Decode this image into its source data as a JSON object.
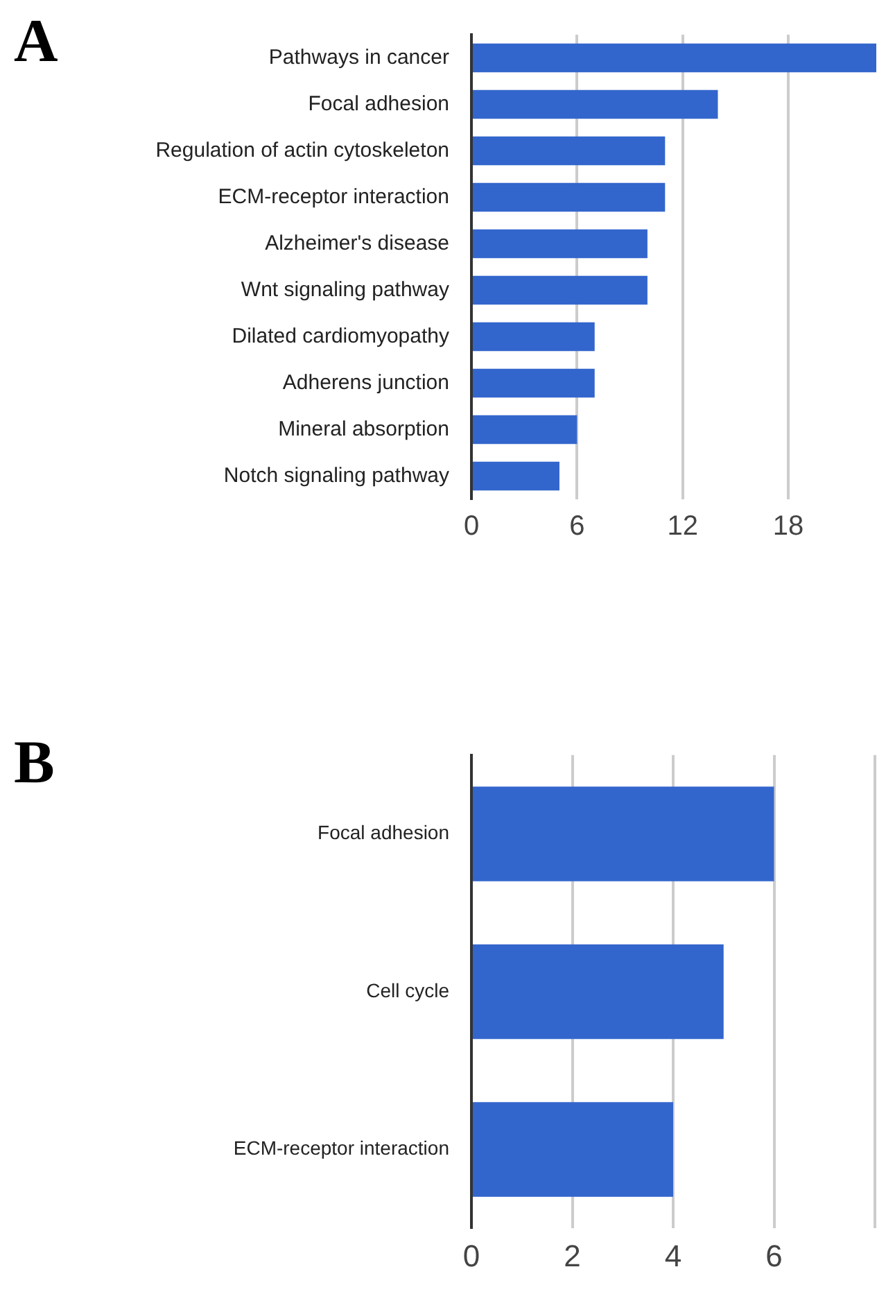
{
  "chart_data": [
    {
      "type": "bar",
      "title": "A",
      "orientation": "horizontal",
      "categories": [
        "Pathways in cancer",
        "Focal adhesion",
        "Regulation of actin cytoskeleton",
        "ECM-receptor interaction",
        "Alzheimer's disease",
        "Wnt signaling pathway",
        "Dilated cardiomyopathy",
        "Adherens junction",
        "Mineral absorption",
        "Notch signaling pathway"
      ],
      "values": [
        23,
        14,
        11,
        11,
        10,
        10,
        7,
        7,
        6,
        5
      ],
      "color": "#3366cc",
      "xlim": [
        0,
        23
      ],
      "xticks": [
        0,
        6,
        12,
        18
      ],
      "grid": "x",
      "legend": false
    },
    {
      "type": "bar",
      "title": "B",
      "orientation": "horizontal",
      "categories": [
        "Focal adhesion",
        "Cell cycle",
        "ECM-receptor interaction"
      ],
      "values": [
        6,
        5,
        4
      ],
      "color": "#3366cc",
      "xlim": [
        0,
        8
      ],
      "xticks": [
        0,
        2,
        4,
        6,
        {
          "value": 8,
          "label": null
        }
      ],
      "grid": "x",
      "legend": false
    }
  ]
}
